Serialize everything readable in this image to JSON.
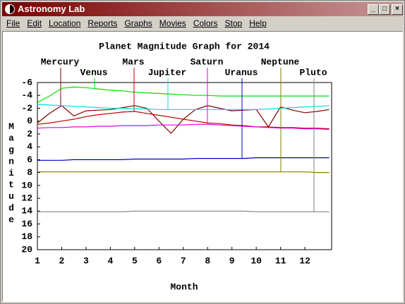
{
  "window": {
    "title": "Astronomy Lab"
  },
  "menu": [
    "File",
    "Edit",
    "Location",
    "Reports",
    "Graphs",
    "Movies",
    "Colors",
    "Stop",
    "Help"
  ],
  "chart_data": {
    "type": "line",
    "title": "Planet Magnitude Graph for 2014",
    "x_label": "Month",
    "y_label": "Magnitude",
    "x": [
      1,
      1.5,
      2,
      2.5,
      3,
      3.5,
      4,
      4.5,
      5,
      5.5,
      6,
      6.5,
      7,
      7.5,
      8,
      8.5,
      9,
      9.5,
      10,
      10.5,
      11,
      11.5,
      12,
      12.5,
      13
    ],
    "xlim": [
      1,
      13.1
    ],
    "xticks": [
      1,
      2,
      3,
      4,
      5,
      6,
      7,
      8,
      9,
      10,
      11,
      12
    ],
    "ylim": [
      -6,
      20
    ],
    "y_inverted": true,
    "yticks": [
      -6,
      -4,
      -2,
      0,
      2,
      4,
      6,
      8,
      10,
      12,
      14,
      16,
      18,
      20
    ],
    "series": [
      {
        "name": "Mercury",
        "color": "#800000",
        "values": [
          0.3,
          -1.2,
          -2.4,
          -0.8,
          -1.6,
          -1.7,
          -1.8,
          -2.1,
          -2.4,
          -2.0,
          0.0,
          1.9,
          -0.3,
          -1.8,
          -2.4,
          -2.0,
          -1.6,
          -1.7,
          -1.8,
          0.9,
          -2.2,
          -1.7,
          -1.3,
          -1.5,
          -1.8
        ]
      },
      {
        "name": "Venus",
        "color": "#00e000",
        "values": [
          -2.9,
          -3.9,
          -5.1,
          -5.3,
          -5.2,
          -5.0,
          -4.8,
          -4.7,
          -4.5,
          -4.4,
          -4.3,
          -4.2,
          -4.1,
          -4.0,
          -4.0,
          -3.9,
          -3.9,
          -3.9,
          -3.9,
          -3.9,
          -3.9,
          -3.9,
          -3.9,
          -3.9,
          -3.9
        ]
      },
      {
        "name": "Mars",
        "color": "#c00000",
        "values": [
          0.5,
          0.3,
          0.0,
          -0.3,
          -0.7,
          -1.0,
          -1.2,
          -1.4,
          -1.5,
          -1.2,
          -0.9,
          -0.6,
          -0.3,
          0.0,
          0.3,
          0.4,
          0.6,
          0.7,
          0.9,
          0.9,
          1.0,
          1.0,
          1.1,
          1.1,
          1.2
        ]
      },
      {
        "name": "Jupiter",
        "color": "#00e0e0",
        "values": [
          -2.6,
          -2.5,
          -2.4,
          -2.3,
          -2.2,
          -2.1,
          -2.0,
          -2.0,
          -1.9,
          -1.9,
          -1.8,
          -1.8,
          -1.8,
          -1.8,
          -1.8,
          -1.8,
          -1.8,
          -1.8,
          -1.8,
          -1.9,
          -2.0,
          -2.1,
          -2.2,
          -2.3,
          -2.4
        ]
      },
      {
        "name": "Saturn",
        "color": "#e000e0",
        "values": [
          1.1,
          1.0,
          1.0,
          0.9,
          0.9,
          0.8,
          0.8,
          0.7,
          0.7,
          0.7,
          0.6,
          0.6,
          0.6,
          0.5,
          0.5,
          0.6,
          0.7,
          0.8,
          0.9,
          1.0,
          1.1,
          1.1,
          1.2,
          1.2,
          1.3
        ]
      },
      {
        "name": "Uranus",
        "color": "#0000c0",
        "values": [
          6.1,
          6.1,
          6.1,
          6.0,
          6.0,
          6.0,
          6.0,
          6.0,
          5.9,
          5.9,
          5.9,
          5.9,
          5.9,
          5.8,
          5.8,
          5.8,
          5.8,
          5.8,
          5.7,
          5.7,
          5.7,
          5.7,
          5.7,
          5.7,
          5.7
        ]
      },
      {
        "name": "Neptune",
        "color": "#808000",
        "values": [
          7.9,
          7.9,
          7.9,
          7.9,
          7.9,
          7.9,
          7.9,
          7.9,
          7.9,
          7.9,
          7.9,
          7.9,
          7.9,
          7.9,
          7.9,
          7.9,
          7.9,
          7.9,
          7.9,
          7.9,
          7.9,
          7.9,
          7.9,
          8.0,
          8.0
        ]
      },
      {
        "name": "Pluto",
        "color": "#808080",
        "values": [
          14.1,
          14.1,
          14.1,
          14.1,
          14.1,
          14.1,
          14.1,
          14.1,
          14.0,
          14.0,
          14.0,
          14.0,
          14.0,
          14.0,
          14.0,
          14.0,
          14.0,
          14.0,
          14.1,
          14.1,
          14.1,
          14.1,
          14.1,
          14.1,
          14.1
        ]
      }
    ]
  }
}
